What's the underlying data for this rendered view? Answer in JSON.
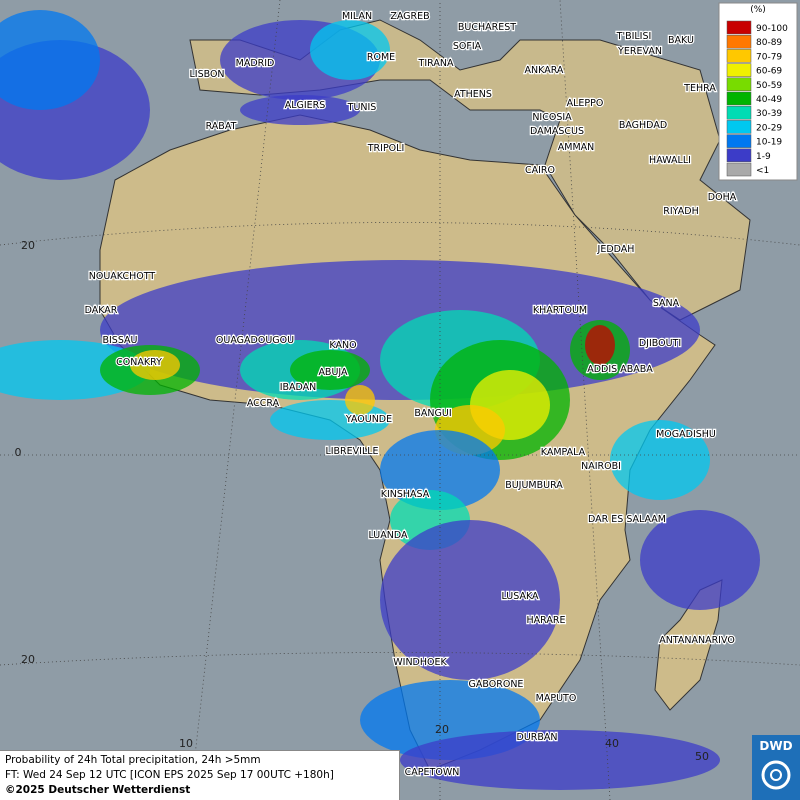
{
  "legend": {
    "title": "(%)",
    "items": [
      {
        "label": "90-100",
        "color": "#c80000"
      },
      {
        "label": "80-89",
        "color": "#ff7800"
      },
      {
        "label": "70-79",
        "color": "#ffc800"
      },
      {
        "label": "60-69",
        "color": "#f0f000"
      },
      {
        "label": "50-59",
        "color": "#78dc00"
      },
      {
        "label": "40-49",
        "color": "#00b400"
      },
      {
        "label": "30-39",
        "color": "#00dcb4"
      },
      {
        "label": "20-29",
        "color": "#00c8f0"
      },
      {
        "label": "10-19",
        "color": "#0078f0"
      },
      {
        "label": "1-9",
        "color": "#3c3cc8"
      },
      {
        "label": "<1",
        "color": "#aaaaaa"
      }
    ]
  },
  "cities": [
    "MILAN",
    "ZAGREB",
    "BUCHAREST",
    "LISBON",
    "MADRID",
    "ROME",
    "SOFIA",
    "TIRANA",
    "ANKARA",
    "T'BILISI",
    "YEREVAN",
    "BAKU",
    "ATHENS",
    "ALGIERS",
    "TUNIS",
    "ALEPPO",
    "TEHRA",
    "RABAT",
    "NICOSIA",
    "BAGHDAD",
    "DAMASCUS",
    "AMMAN",
    "TRIPOLI",
    "HAWALLI",
    "CAIRO",
    "DOHA",
    "RIYADH",
    "JEDDAH",
    "NOUAKCHOTT",
    "KHARTOUM",
    "SANA",
    "DAKAR",
    "BISSAU",
    "OUAGADOUGOU",
    "KANO",
    "DJIBOUTI",
    "CONAKRY",
    "ABUJA",
    "ADDIS ABABA",
    "IBADAN",
    "ACCRA",
    "BANGUI",
    "YAOUNDE",
    "MOGADISHU",
    "LIBREVILLE",
    "KAMPALA",
    "NAIROBI",
    "BUJUMBURA",
    "KINSHASA",
    "DAR ES SALAAM",
    "LUANDA",
    "LUSAKA",
    "HARARE",
    "ANTANANARIVO",
    "WINDHOEK",
    "GABORONE",
    "MAPUTO",
    "DURBAN",
    "CAPETOWN"
  ],
  "grid_labels": [
    "20",
    "0",
    "20",
    "10",
    "20",
    "40",
    "50"
  ],
  "footer": {
    "line1": "Probability of 24h Total precipitation, 24h >5mm",
    "line2": "FT: Wed 24 Sep 12 UTC [ICON EPS 2025 Sep 17 00UTC +180h]",
    "line3": "©2025 Deutscher Wetterdienst"
  },
  "logo": "DWD"
}
